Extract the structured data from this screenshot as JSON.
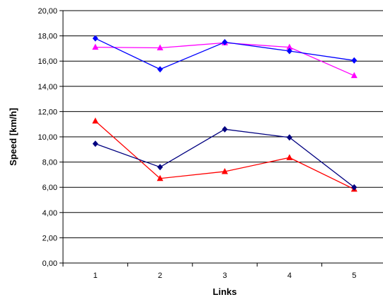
{
  "chart_data": {
    "type": "line",
    "xlabel": "Links",
    "ylabel": "Speed [km/h]",
    "categories": [
      "1",
      "2",
      "3",
      "4",
      "5"
    ],
    "ylim": [
      0,
      20
    ],
    "yticks": [
      0,
      2,
      4,
      6,
      8,
      10,
      12,
      14,
      16,
      18,
      20
    ],
    "ytick_labels": [
      "0,00",
      "2,00",
      "4,00",
      "6,00",
      "8,00",
      "10,00",
      "12,00",
      "14,00",
      "16,00",
      "18,00",
      "20,00"
    ],
    "grid": true,
    "series": [
      {
        "color": "#FF00FF",
        "marker": "triangle",
        "values": [
          17.1,
          17.05,
          17.45,
          17.1,
          14.85
        ]
      },
      {
        "color": "#0000FF",
        "marker": "diamond",
        "values": [
          17.8,
          15.35,
          17.5,
          16.8,
          16.05
        ]
      },
      {
        "color": "#FF0000",
        "marker": "triangle",
        "values": [
          11.25,
          6.7,
          7.25,
          8.35,
          5.85
        ]
      },
      {
        "color": "#000080",
        "marker": "diamond",
        "values": [
          9.45,
          7.6,
          10.6,
          9.95,
          6.0
        ]
      }
    ]
  }
}
